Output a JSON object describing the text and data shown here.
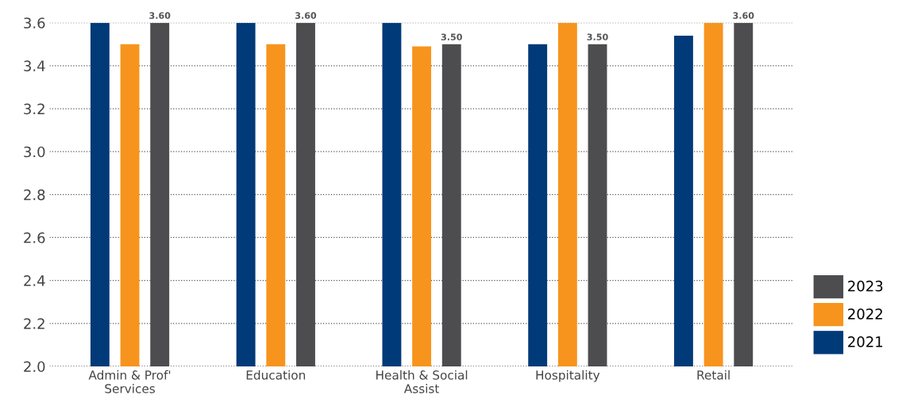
{
  "chart_data": {
    "type": "bar",
    "categories": [
      "Admin & Prof'\nServices",
      "Education",
      "Health & Social\nAssist",
      "Hospitality",
      "Retail"
    ],
    "series": [
      {
        "name": "2021",
        "color": "#003a78",
        "values": [
          3.6,
          3.6,
          3.6,
          3.5,
          3.54
        ]
      },
      {
        "name": "2022",
        "color": "#f7941d",
        "values": [
          3.5,
          3.5,
          3.49,
          3.6,
          3.6
        ]
      },
      {
        "name": "2023",
        "color": "#4d4d4f",
        "values": [
          3.6,
          3.6,
          3.5,
          3.5,
          3.6
        ],
        "value_labels": [
          "3.60",
          "3.60",
          "3.50",
          "3.50",
          "3.60"
        ]
      }
    ],
    "ylim": [
      2.0,
      3.6
    ],
    "yticks": [
      "2.0",
      "2.2",
      "2.4",
      "2.6",
      "2.8",
      "3.0",
      "3.2",
      "3.4",
      "3.6"
    ],
    "grid": "y",
    "legend": "bottom right"
  }
}
